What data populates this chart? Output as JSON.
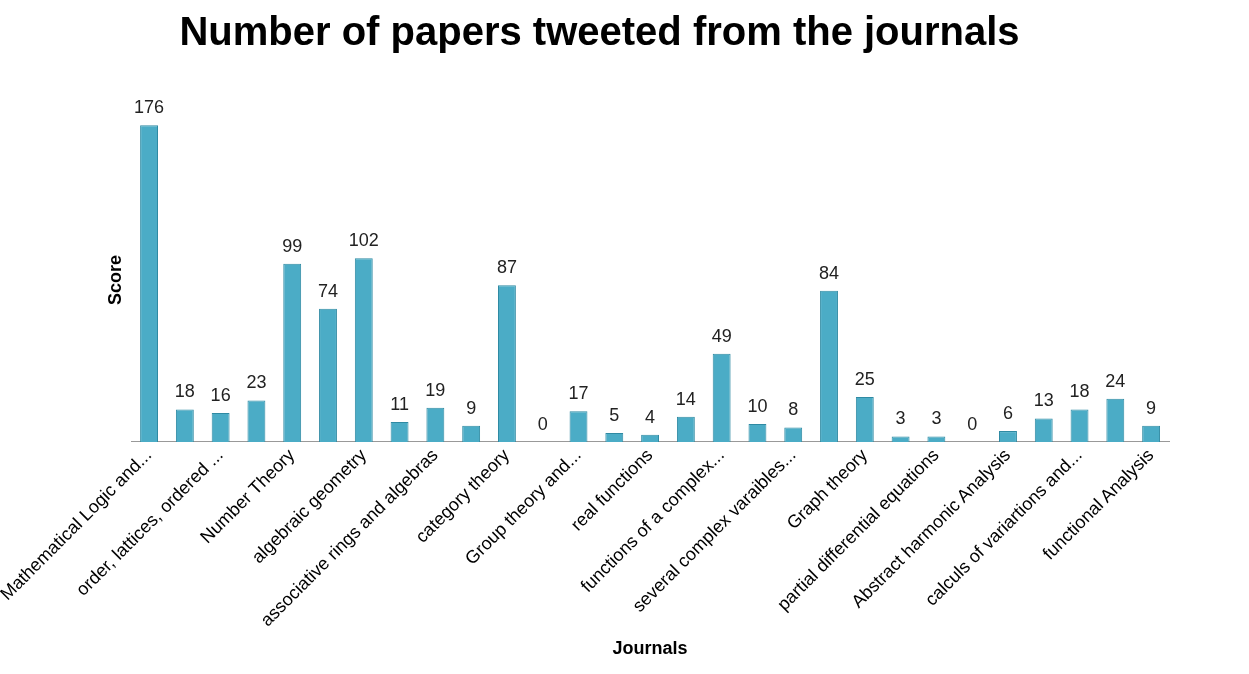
{
  "chart_data": {
    "type": "bar",
    "title": "Number of papers tweeted from the journals",
    "xlabel": "Journals",
    "ylabel": "Score",
    "categories": [
      "Mathematical Logic and...",
      null,
      "order, lattices, ordered ...",
      null,
      "Number Theory",
      null,
      "algebraic geometry",
      null,
      "associative rings and algebras",
      null,
      "category theory",
      null,
      "Group theory and...",
      null,
      "real functions",
      null,
      "functions of a complex...",
      null,
      "several complex varaibles...",
      null,
      "Graph theory",
      null,
      "partial differential equations",
      null,
      "Abstract harmonic Analysis",
      null,
      "calculs of variartions and...",
      null,
      "functional Analysis"
    ],
    "values": [
      176,
      18,
      16,
      23,
      99,
      74,
      102,
      11,
      19,
      9,
      87,
      0,
      17,
      5,
      4,
      14,
      49,
      10,
      8,
      84,
      25,
      3,
      3,
      0,
      6,
      13,
      18,
      24,
      9
    ],
    "color": "#4bacc6",
    "data_labels": true,
    "grid": false,
    "legend": false
  }
}
